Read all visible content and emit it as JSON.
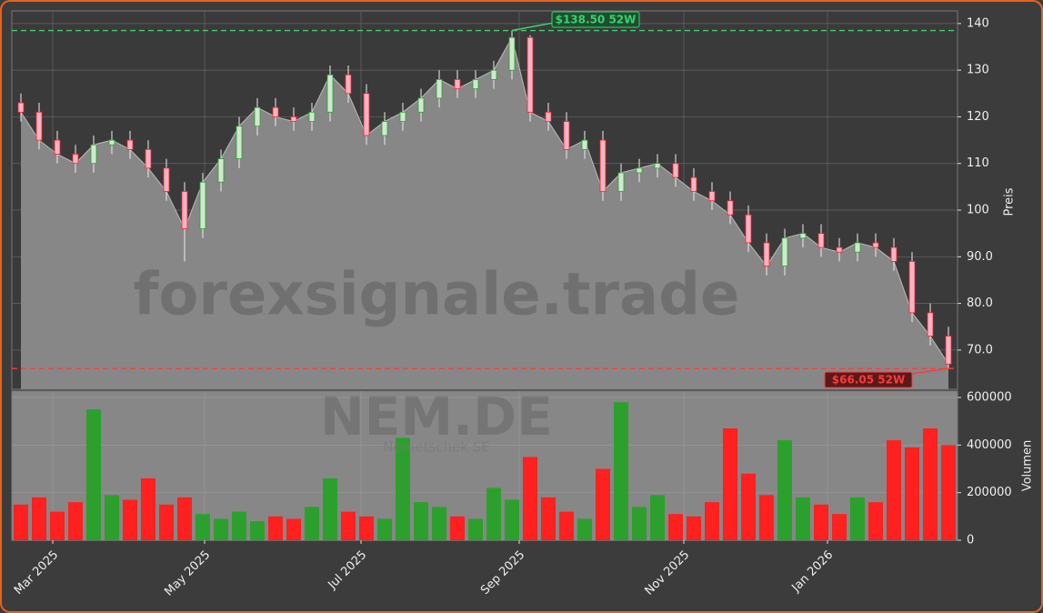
{
  "chart_data": {
    "type": "candlestick",
    "watermark": "forexsignale.trade",
    "symbol": "NEM.DE",
    "company_name": "Nemetschek SE",
    "ylabel": "Preis",
    "volume_ylabel": "Volumen",
    "up_color": "#2ca02c",
    "down_color": "#ff2020",
    "x": [
      0,
      1,
      2,
      3,
      4,
      5,
      6,
      7,
      8,
      9,
      10,
      11,
      12,
      13,
      14,
      15,
      16,
      17,
      18,
      19,
      20,
      21,
      22,
      23,
      24,
      25,
      26,
      27,
      28,
      29,
      30,
      31,
      32,
      33,
      34,
      35,
      36,
      37,
      38,
      39,
      40,
      41,
      42,
      43,
      44,
      45,
      46,
      47,
      48,
      49,
      50,
      51
    ],
    "open": [
      123,
      121,
      115,
      112,
      110,
      114,
      115,
      113,
      109,
      104,
      96,
      106,
      111,
      118,
      122,
      120,
      119,
      121,
      129,
      125,
      116,
      119,
      121,
      124,
      128,
      126,
      128,
      130,
      137,
      121,
      119,
      113,
      115,
      104,
      108,
      109,
      110,
      107,
      104,
      102,
      99,
      93,
      88,
      94,
      95,
      92,
      91,
      93,
      92,
      89,
      78,
      73
    ],
    "high": [
      125,
      123,
      117,
      114,
      116,
      117,
      117,
      115,
      111,
      106,
      108,
      113,
      120,
      124,
      124,
      122,
      123,
      131,
      131,
      127,
      121,
      123,
      126,
      130,
      130,
      130,
      132,
      138.5,
      137.5,
      123,
      121,
      117,
      117,
      110,
      111,
      112,
      112,
      109,
      106,
      104,
      101,
      95,
      96,
      97,
      97,
      94,
      95,
      95,
      94,
      91,
      80,
      75
    ],
    "low": [
      119,
      113,
      110,
      108,
      108,
      112,
      111,
      107,
      102,
      89,
      94,
      104,
      109,
      116,
      118,
      117,
      117,
      119,
      123,
      114,
      114,
      117,
      119,
      122,
      124,
      124,
      126,
      128,
      119,
      117,
      111,
      111,
      102,
      102,
      106,
      107,
      105,
      102,
      100,
      97,
      91,
      86,
      86,
      92,
      90,
      89,
      89,
      90,
      87,
      76,
      71,
      66.05
    ],
    "close": [
      121,
      115,
      112,
      110,
      114,
      115,
      113,
      109,
      104,
      96,
      106,
      111,
      118,
      122,
      120,
      119,
      121,
      129,
      125,
      116,
      119,
      121,
      124,
      128,
      126,
      128,
      130,
      137,
      121,
      119,
      113,
      115,
      104,
      108,
      109,
      110,
      107,
      104,
      102,
      99,
      93,
      88,
      94,
      95,
      92,
      91,
      93,
      92,
      89,
      78,
      73,
      67
    ],
    "volume": [
      150000,
      180000,
      120000,
      160000,
      550000,
      190000,
      170000,
      260000,
      150000,
      180000,
      110000,
      90000,
      120000,
      80000,
      100000,
      90000,
      140000,
      260000,
      120000,
      100000,
      90000,
      430000,
      160000,
      140000,
      100000,
      90000,
      220000,
      170000,
      350000,
      180000,
      120000,
      90000,
      300000,
      580000,
      140000,
      190000,
      110000,
      100000,
      160000,
      470000,
      280000,
      190000,
      420000,
      180000,
      150000,
      110000,
      180000,
      160000,
      420000,
      390000,
      470000,
      400000
    ],
    "xlim": [
      -0.5,
      51.5
    ],
    "xticks": [
      {
        "value": 1.75,
        "label": "Mar 2025"
      },
      {
        "value": 10.1,
        "label": "May 2025"
      },
      {
        "value": 18.7,
        "label": "Jul 2025"
      },
      {
        "value": 27.4,
        "label": "Sep 2025"
      },
      {
        "value": 36.45,
        "label": "Nov 2025"
      },
      {
        "value": 44.35,
        "label": "Jan 2026"
      }
    ],
    "ylim": [
      61.6,
      142.7
    ],
    "yticks": [
      {
        "value": 70,
        "label": "70.0"
      },
      {
        "value": 80,
        "label": "80.0"
      },
      {
        "value": 90,
        "label": "90.0"
      },
      100,
      110,
      120,
      130,
      140
    ],
    "volume_ylim": [
      0,
      626800
    ],
    "volume_yticks": [
      0,
      200000,
      400000,
      600000
    ],
    "annotations": [
      {
        "label": "$138.50 52W",
        "value": 138.5,
        "x": 27,
        "color": "#3ecf6e"
      },
      {
        "label": "$66.05 52W",
        "value": 66.05,
        "x": 51,
        "color": "#ff3b3b"
      }
    ]
  }
}
